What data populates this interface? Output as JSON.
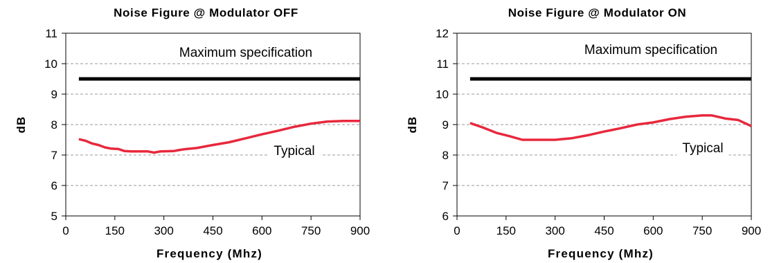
{
  "chart_data": [
    {
      "type": "line",
      "title": "Noise Figure @ Modulator OFF",
      "xlabel": "Frequency (Mhz)",
      "ylabel": "dB",
      "xlim": [
        0,
        900
      ],
      "ylim": [
        5,
        11
      ],
      "x_ticks": [
        "0",
        "150",
        "300",
        "450",
        "600",
        "750",
        "900"
      ],
      "y_ticks": [
        "5",
        "6",
        "7",
        "8",
        "9",
        "10",
        "11"
      ],
      "grid": "horizontal dashed",
      "annotations": [
        {
          "text": "Maximum specification",
          "target": "max"
        },
        {
          "text": "Typical",
          "target": "typical"
        }
      ],
      "series": [
        {
          "key": "max",
          "color": "#000000",
          "points": [
            [
              40,
              9.5
            ],
            [
              900,
              9.5
            ]
          ]
        },
        {
          "key": "typical",
          "color": "#e8283c",
          "points": [
            [
              40,
              7.52
            ],
            [
              60,
              7.47
            ],
            [
              80,
              7.38
            ],
            [
              100,
              7.33
            ],
            [
              120,
              7.25
            ],
            [
              140,
              7.21
            ],
            [
              160,
              7.2
            ],
            [
              180,
              7.13
            ],
            [
              200,
              7.12
            ],
            [
              250,
              7.12
            ],
            [
              270,
              7.08
            ],
            [
              290,
              7.12
            ],
            [
              330,
              7.13
            ],
            [
              350,
              7.17
            ],
            [
              370,
              7.2
            ],
            [
              400,
              7.23
            ],
            [
              450,
              7.33
            ],
            [
              500,
              7.42
            ],
            [
              550,
              7.55
            ],
            [
              600,
              7.68
            ],
            [
              650,
              7.8
            ],
            [
              700,
              7.93
            ],
            [
              750,
              8.03
            ],
            [
              800,
              8.1
            ],
            [
              850,
              8.12
            ],
            [
              900,
              8.12
            ]
          ]
        }
      ]
    },
    {
      "type": "line",
      "title": "Noise Figure @ Modulator ON",
      "xlabel": "Frequency (Mhz)",
      "ylabel": "dB",
      "xlim": [
        0,
        900
      ],
      "ylim": [
        6,
        12
      ],
      "x_ticks": [
        "0",
        "150",
        "300",
        "450",
        "600",
        "750",
        "900"
      ],
      "y_ticks": [
        "6",
        "7",
        "8",
        "9",
        "10",
        "11",
        "12"
      ],
      "grid": "horizontal dashed",
      "annotations": [
        {
          "text": "Maximum specification",
          "target": "max"
        },
        {
          "text": "Typical",
          "target": "typical"
        }
      ],
      "series": [
        {
          "key": "max",
          "color": "#000000",
          "points": [
            [
              40,
              10.5
            ],
            [
              900,
              10.5
            ]
          ]
        },
        {
          "key": "typical",
          "color": "#e8283c",
          "points": [
            [
              40,
              9.05
            ],
            [
              80,
              8.9
            ],
            [
              120,
              8.73
            ],
            [
              160,
              8.62
            ],
            [
              200,
              8.5
            ],
            [
              250,
              8.5
            ],
            [
              300,
              8.5
            ],
            [
              350,
              8.55
            ],
            [
              400,
              8.65
            ],
            [
              450,
              8.77
            ],
            [
              500,
              8.88
            ],
            [
              550,
              9.0
            ],
            [
              600,
              9.07
            ],
            [
              650,
              9.18
            ],
            [
              700,
              9.26
            ],
            [
              750,
              9.3
            ],
            [
              780,
              9.3
            ],
            [
              820,
              9.2
            ],
            [
              860,
              9.15
            ],
            [
              900,
              8.95
            ]
          ]
        }
      ]
    }
  ]
}
